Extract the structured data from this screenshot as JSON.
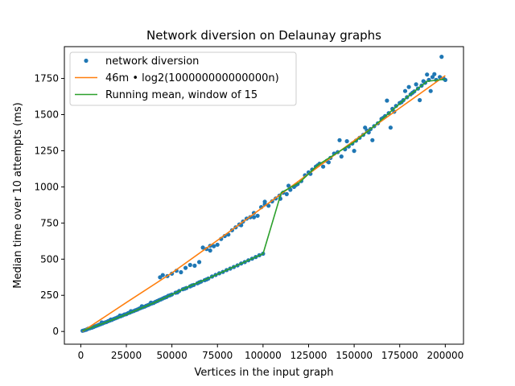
{
  "chart_data": {
    "type": "scatter",
    "title": "Network diversion on Delaunay graphs",
    "xlabel": "Vertices in the input graph",
    "ylabel": "Median time over 10 attempts (ms)",
    "xlim": [
      -9000,
      210000
    ],
    "ylim": [
      -88,
      1970
    ],
    "xticks": [
      0,
      25000,
      50000,
      75000,
      100000,
      125000,
      150000,
      175000,
      200000
    ],
    "yticks": [
      0,
      250,
      500,
      750,
      1000,
      1250,
      1500,
      1750
    ],
    "grid": false,
    "legend_position": "top-left",
    "series": [
      {
        "name": "network diversion",
        "kind": "scatter",
        "color": "#1f77b4",
        "points": [
          [
            1000,
            5
          ],
          [
            2000,
            8
          ],
          [
            3000,
            12
          ],
          [
            4000,
            18
          ],
          [
            5000,
            22
          ],
          [
            6000,
            26
          ],
          [
            7000,
            31
          ],
          [
            8000,
            36
          ],
          [
            9000,
            41
          ],
          [
            10000,
            46
          ],
          [
            11000,
            51
          ],
          [
            12000,
            56
          ],
          [
            13000,
            61
          ],
          [
            14000,
            65
          ],
          [
            15000,
            71
          ],
          [
            16000,
            76
          ],
          [
            17000,
            80
          ],
          [
            18000,
            86
          ],
          [
            19000,
            91
          ],
          [
            20000,
            96
          ],
          [
            21000,
            102
          ],
          [
            22000,
            106
          ],
          [
            23000,
            111
          ],
          [
            24000,
            117
          ],
          [
            25000,
            120
          ],
          [
            26000,
            127
          ],
          [
            27000,
            131
          ],
          [
            28000,
            137
          ],
          [
            29000,
            141
          ],
          [
            30000,
            147
          ],
          [
            31000,
            151
          ],
          [
            32000,
            158
          ],
          [
            33000,
            163
          ],
          [
            34000,
            168
          ],
          [
            35000,
            172
          ],
          [
            36000,
            178
          ],
          [
            37000,
            183
          ],
          [
            38000,
            189
          ],
          [
            39000,
            194
          ],
          [
            40000,
            198
          ],
          [
            11500,
            62
          ],
          [
            16500,
            82
          ],
          [
            21500,
            110
          ],
          [
            27500,
            140
          ],
          [
            33500,
            174
          ],
          [
            38500,
            199
          ],
          [
            41000,
            205
          ],
          [
            42000,
            210
          ],
          [
            43000,
            217
          ],
          [
            44000,
            222
          ],
          [
            45000,
            228
          ],
          [
            46000,
            234
          ],
          [
            47000,
            238
          ],
          [
            48000,
            247
          ],
          [
            49000,
            251
          ],
          [
            50000,
            256
          ],
          [
            52000,
            268
          ],
          [
            54000,
            280
          ],
          [
            56000,
            292
          ],
          [
            58000,
            301
          ],
          [
            60000,
            312
          ],
          [
            62000,
            322
          ],
          [
            64000,
            333
          ],
          [
            66000,
            345
          ],
          [
            68000,
            355
          ],
          [
            70000,
            366
          ],
          [
            53000,
            270
          ],
          [
            57000,
            296
          ],
          [
            61000,
            318
          ],
          [
            65000,
            340
          ],
          [
            69000,
            360
          ],
          [
            72000,
            380
          ],
          [
            74000,
            391
          ],
          [
            76000,
            402
          ],
          [
            78000,
            412
          ],
          [
            80000,
            424
          ],
          [
            82000,
            435
          ],
          [
            84000,
            446
          ],
          [
            86000,
            457
          ],
          [
            88000,
            470
          ],
          [
            90000,
            480
          ],
          [
            92000,
            492
          ],
          [
            94000,
            503
          ],
          [
            96000,
            515
          ],
          [
            98000,
            527
          ],
          [
            100000,
            538
          ],
          [
            43500,
            375
          ],
          [
            45000,
            390
          ],
          [
            47500,
            383
          ],
          [
            50000,
            400
          ],
          [
            52500,
            420
          ],
          [
            55000,
            410
          ],
          [
            57500,
            440
          ],
          [
            60000,
            460
          ],
          [
            62500,
            455
          ],
          [
            65000,
            480
          ],
          [
            67000,
            580
          ],
          [
            69000,
            570
          ],
          [
            71000,
            560
          ],
          [
            73000,
            590
          ],
          [
            75000,
            600
          ],
          [
            77000,
            640
          ],
          [
            79000,
            660
          ],
          [
            81000,
            670
          ],
          [
            83000,
            700
          ],
          [
            85000,
            720
          ],
          [
            87000,
            740
          ],
          [
            89000,
            760
          ],
          [
            91000,
            780
          ],
          [
            93000,
            790
          ],
          [
            95000,
            820
          ],
          [
            97000,
            800
          ],
          [
            99000,
            860
          ],
          [
            101000,
            880
          ],
          [
            103000,
            870
          ],
          [
            105000,
            900
          ],
          [
            107000,
            920
          ],
          [
            109000,
            940
          ],
          [
            111000,
            960
          ],
          [
            113000,
            950
          ],
          [
            115000,
            980
          ],
          [
            117000,
            1000
          ],
          [
            119000,
            1020
          ],
          [
            121000,
            1040
          ],
          [
            123000,
            1080
          ],
          [
            125000,
            1100
          ],
          [
            127000,
            1120
          ],
          [
            129000,
            1140
          ],
          [
            131000,
            1160
          ],
          [
            133000,
            1140
          ],
          [
            135000,
            1180
          ],
          [
            137000,
            1200
          ],
          [
            139000,
            1230
          ],
          [
            141000,
            1240
          ],
          [
            143000,
            1210
          ],
          [
            145000,
            1260
          ],
          [
            147000,
            1280
          ],
          [
            149000,
            1300
          ],
          [
            151000,
            1320
          ],
          [
            153000,
            1340
          ],
          [
            155000,
            1360
          ],
          [
            157000,
            1390
          ],
          [
            159000,
            1400
          ],
          [
            161000,
            1420
          ],
          [
            163000,
            1440
          ],
          [
            165000,
            1470
          ],
          [
            167000,
            1490
          ],
          [
            169000,
            1510
          ],
          [
            171000,
            1540
          ],
          [
            173000,
            1560
          ],
          [
            175000,
            1580
          ],
          [
            177000,
            1600
          ],
          [
            179000,
            1620
          ],
          [
            181000,
            1640
          ],
          [
            183000,
            1660
          ],
          [
            185000,
            1680
          ],
          [
            187000,
            1700
          ],
          [
            189000,
            1720
          ],
          [
            191000,
            1740
          ],
          [
            193000,
            1760
          ],
          [
            195000,
            1740
          ],
          [
            197000,
            1760
          ],
          [
            198000,
            1900
          ],
          [
            199000,
            1750
          ],
          [
            200000,
            1740
          ],
          [
            71000,
            592
          ],
          [
            88000,
            735
          ],
          [
            95000,
            790
          ],
          [
            101000,
            897
          ],
          [
            109500,
            918
          ],
          [
            114000,
            1008
          ],
          [
            118000,
            1012
          ],
          [
            126000,
            1090
          ],
          [
            130000,
            1149
          ],
          [
            136000,
            1170
          ],
          [
            142000,
            1323
          ],
          [
            146000,
            1316
          ],
          [
            150000,
            1249
          ],
          [
            156000,
            1410
          ],
          [
            158000,
            1377
          ],
          [
            160000,
            1323
          ],
          [
            166000,
            1477
          ],
          [
            168000,
            1597
          ],
          [
            170000,
            1410
          ],
          [
            172000,
            1520
          ],
          [
            176000,
            1586
          ],
          [
            178000,
            1663
          ],
          [
            180000,
            1691
          ],
          [
            182000,
            1651
          ],
          [
            184000,
            1709
          ],
          [
            186000,
            1600
          ],
          [
            188000,
            1731
          ],
          [
            190000,
            1777
          ],
          [
            192000,
            1663
          ],
          [
            194000,
            1780
          ]
        ]
      },
      {
        "name": "46m • log2(100000000000000n)",
        "kind": "line",
        "color": "#ff7f0e",
        "points": [
          [
            1000,
            0
          ],
          [
            10000,
            75
          ],
          [
            25000,
            200
          ],
          [
            50000,
            405
          ],
          [
            75000,
            630
          ],
          [
            100000,
            860
          ],
          [
            125000,
            1090
          ],
          [
            150000,
            1320
          ],
          [
            175000,
            1545
          ],
          [
            200000,
            1770
          ]
        ]
      },
      {
        "name": "Running mean, window of 15",
        "kind": "line",
        "color": "#2ca02c",
        "points": [
          [
            1000,
            5
          ],
          [
            10000,
            45
          ],
          [
            25000,
            118
          ],
          [
            40000,
            198
          ],
          [
            50000,
            255
          ],
          [
            60000,
            315
          ],
          [
            70000,
            367
          ],
          [
            80000,
            424
          ],
          [
            90000,
            481
          ],
          [
            100000,
            538
          ],
          [
            110000,
            960
          ],
          [
            120000,
            1030
          ],
          [
            130000,
            1150
          ],
          [
            140000,
            1230
          ],
          [
            150000,
            1310
          ],
          [
            160000,
            1410
          ],
          [
            170000,
            1520
          ],
          [
            180000,
            1630
          ],
          [
            190000,
            1730
          ],
          [
            200000,
            1745
          ]
        ]
      }
    ]
  }
}
